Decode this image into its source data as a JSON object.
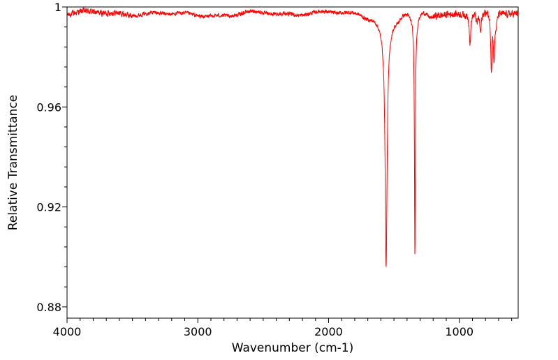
{
  "chart_data": {
    "type": "line",
    "title": "",
    "xlabel": "Wavenumber (cm-1)",
    "ylabel": "Relative Transmittance",
    "xlim": [
      4000,
      550
    ],
    "ylim": [
      0.8755,
      1.0
    ],
    "x_ticks": [
      4000,
      3000,
      2000,
      1000
    ],
    "x_tick_labels": [
      "4000",
      "3000",
      "2000",
      "1000"
    ],
    "y_ticks": [
      0.88,
      0.92,
      0.96,
      1.0
    ],
    "y_tick_labels": [
      "0.88",
      "0.92",
      "0.96",
      "1"
    ],
    "grid": false,
    "legend": "none",
    "line_color": "#ff0000",
    "baseline": 0.9975,
    "noise_amplitude": 0.0007,
    "features": [
      {
        "center": 1560,
        "depth": 0.094,
        "width": 9,
        "shape": "lorentzian",
        "label": "sharp band ~1560 cm-1"
      },
      {
        "center": 1560,
        "depth": 0.008,
        "width": 45,
        "shape": "gaussian",
        "label": "broad shoulder ~1560 cm-1"
      },
      {
        "center": 1340,
        "depth": 0.0945,
        "width": 4,
        "shape": "lorentzian",
        "label": "sharp band ~1340 cm-1"
      },
      {
        "center": 1340,
        "depth": 0.004,
        "width": 25,
        "shape": "gaussian",
        "label": "shoulder ~1340 cm-1"
      },
      {
        "center": 1695,
        "depth": 0.0012,
        "width": 40,
        "shape": "gaussian",
        "label": "weak ~1695 cm-1"
      },
      {
        "center": 1470,
        "depth": 0.002,
        "width": 22,
        "shape": "gaussian",
        "label": "weak ~1470 cm-1"
      },
      {
        "center": 1220,
        "depth": 0.0015,
        "width": 22,
        "shape": "gaussian",
        "label": "weak ~1220 cm-1"
      },
      {
        "center": 918,
        "depth": 0.0118,
        "width": 6,
        "shape": "lorentzian",
        "label": "band ~918 cm-1"
      },
      {
        "center": 865,
        "depth": 0.0035,
        "width": 6,
        "shape": "gaussian",
        "label": "weak ~865 cm-1"
      },
      {
        "center": 838,
        "depth": 0.0082,
        "width": 7,
        "shape": "lorentzian",
        "label": "band ~838 cm-1"
      },
      {
        "center": 755,
        "depth": 0.0225,
        "width": 6,
        "shape": "lorentzian",
        "label": "band ~755 cm-1"
      },
      {
        "center": 735,
        "depth": 0.0175,
        "width": 6,
        "shape": "lorentzian",
        "label": "band ~735 cm-1"
      },
      {
        "center": 720,
        "depth": 0.004,
        "width": 8,
        "shape": "gaussian",
        "label": "weak ~720 cm-1"
      },
      {
        "center": 2800,
        "depth": 0.0008,
        "width": 120,
        "shape": "gaussian",
        "label": "broad weak ~2800 cm-1"
      },
      {
        "center": 3150,
        "depth": 0.0007,
        "width": 100,
        "shape": "gaussian",
        "label": "broad weak ~3150 cm-1"
      }
    ]
  }
}
